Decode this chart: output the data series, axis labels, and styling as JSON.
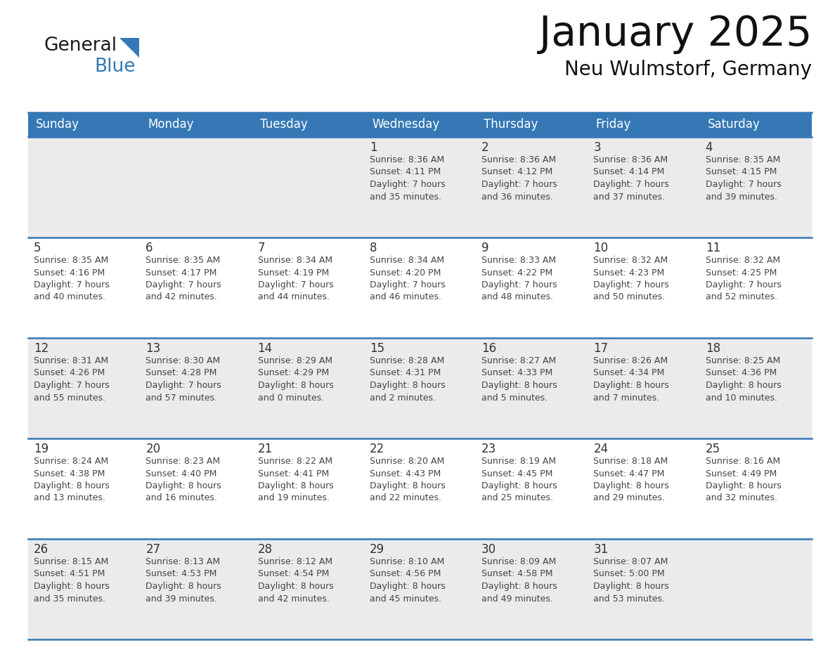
{
  "title": "January 2025",
  "subtitle": "Neu Wulmstorf, Germany",
  "header_color": "#3578b5",
  "header_text_color": "#ffffff",
  "cell_bg_row0": "#ebebeb",
  "cell_bg_row1": "#ffffff",
  "cell_bg_row2": "#ebebeb",
  "cell_bg_row3": "#ffffff",
  "cell_bg_row4": "#ebebeb",
  "day_num_color": "#333333",
  "info_text_color": "#444444",
  "border_color": "#3578b5",
  "logo_general_color": "#1a1a1a",
  "logo_blue_color": "#3578b5",
  "logo_triangle_color": "#3578b5",
  "days_of_week": [
    "Sunday",
    "Monday",
    "Tuesday",
    "Wednesday",
    "Thursday",
    "Friday",
    "Saturday"
  ],
  "weeks": [
    [
      {
        "day": "",
        "info": ""
      },
      {
        "day": "",
        "info": ""
      },
      {
        "day": "",
        "info": ""
      },
      {
        "day": "1",
        "info": "Sunrise: 8:36 AM\nSunset: 4:11 PM\nDaylight: 7 hours\nand 35 minutes."
      },
      {
        "day": "2",
        "info": "Sunrise: 8:36 AM\nSunset: 4:12 PM\nDaylight: 7 hours\nand 36 minutes."
      },
      {
        "day": "3",
        "info": "Sunrise: 8:36 AM\nSunset: 4:14 PM\nDaylight: 7 hours\nand 37 minutes."
      },
      {
        "day": "4",
        "info": "Sunrise: 8:35 AM\nSunset: 4:15 PM\nDaylight: 7 hours\nand 39 minutes."
      }
    ],
    [
      {
        "day": "5",
        "info": "Sunrise: 8:35 AM\nSunset: 4:16 PM\nDaylight: 7 hours\nand 40 minutes."
      },
      {
        "day": "6",
        "info": "Sunrise: 8:35 AM\nSunset: 4:17 PM\nDaylight: 7 hours\nand 42 minutes."
      },
      {
        "day": "7",
        "info": "Sunrise: 8:34 AM\nSunset: 4:19 PM\nDaylight: 7 hours\nand 44 minutes."
      },
      {
        "day": "8",
        "info": "Sunrise: 8:34 AM\nSunset: 4:20 PM\nDaylight: 7 hours\nand 46 minutes."
      },
      {
        "day": "9",
        "info": "Sunrise: 8:33 AM\nSunset: 4:22 PM\nDaylight: 7 hours\nand 48 minutes."
      },
      {
        "day": "10",
        "info": "Sunrise: 8:32 AM\nSunset: 4:23 PM\nDaylight: 7 hours\nand 50 minutes."
      },
      {
        "day": "11",
        "info": "Sunrise: 8:32 AM\nSunset: 4:25 PM\nDaylight: 7 hours\nand 52 minutes."
      }
    ],
    [
      {
        "day": "12",
        "info": "Sunrise: 8:31 AM\nSunset: 4:26 PM\nDaylight: 7 hours\nand 55 minutes."
      },
      {
        "day": "13",
        "info": "Sunrise: 8:30 AM\nSunset: 4:28 PM\nDaylight: 7 hours\nand 57 minutes."
      },
      {
        "day": "14",
        "info": "Sunrise: 8:29 AM\nSunset: 4:29 PM\nDaylight: 8 hours\nand 0 minutes."
      },
      {
        "day": "15",
        "info": "Sunrise: 8:28 AM\nSunset: 4:31 PM\nDaylight: 8 hours\nand 2 minutes."
      },
      {
        "day": "16",
        "info": "Sunrise: 8:27 AM\nSunset: 4:33 PM\nDaylight: 8 hours\nand 5 minutes."
      },
      {
        "day": "17",
        "info": "Sunrise: 8:26 AM\nSunset: 4:34 PM\nDaylight: 8 hours\nand 7 minutes."
      },
      {
        "day": "18",
        "info": "Sunrise: 8:25 AM\nSunset: 4:36 PM\nDaylight: 8 hours\nand 10 minutes."
      }
    ],
    [
      {
        "day": "19",
        "info": "Sunrise: 8:24 AM\nSunset: 4:38 PM\nDaylight: 8 hours\nand 13 minutes."
      },
      {
        "day": "20",
        "info": "Sunrise: 8:23 AM\nSunset: 4:40 PM\nDaylight: 8 hours\nand 16 minutes."
      },
      {
        "day": "21",
        "info": "Sunrise: 8:22 AM\nSunset: 4:41 PM\nDaylight: 8 hours\nand 19 minutes."
      },
      {
        "day": "22",
        "info": "Sunrise: 8:20 AM\nSunset: 4:43 PM\nDaylight: 8 hours\nand 22 minutes."
      },
      {
        "day": "23",
        "info": "Sunrise: 8:19 AM\nSunset: 4:45 PM\nDaylight: 8 hours\nand 25 minutes."
      },
      {
        "day": "24",
        "info": "Sunrise: 8:18 AM\nSunset: 4:47 PM\nDaylight: 8 hours\nand 29 minutes."
      },
      {
        "day": "25",
        "info": "Sunrise: 8:16 AM\nSunset: 4:49 PM\nDaylight: 8 hours\nand 32 minutes."
      }
    ],
    [
      {
        "day": "26",
        "info": "Sunrise: 8:15 AM\nSunset: 4:51 PM\nDaylight: 8 hours\nand 35 minutes."
      },
      {
        "day": "27",
        "info": "Sunrise: 8:13 AM\nSunset: 4:53 PM\nDaylight: 8 hours\nand 39 minutes."
      },
      {
        "day": "28",
        "info": "Sunrise: 8:12 AM\nSunset: 4:54 PM\nDaylight: 8 hours\nand 42 minutes."
      },
      {
        "day": "29",
        "info": "Sunrise: 8:10 AM\nSunset: 4:56 PM\nDaylight: 8 hours\nand 45 minutes."
      },
      {
        "day": "30",
        "info": "Sunrise: 8:09 AM\nSunset: 4:58 PM\nDaylight: 8 hours\nand 49 minutes."
      },
      {
        "day": "31",
        "info": "Sunrise: 8:07 AM\nSunset: 5:00 PM\nDaylight: 8 hours\nand 53 minutes."
      },
      {
        "day": "",
        "info": ""
      }
    ]
  ],
  "cell_bg_colors": [
    "#ebebeb",
    "#ffffff",
    "#ebebeb",
    "#ffffff",
    "#ebebeb"
  ]
}
